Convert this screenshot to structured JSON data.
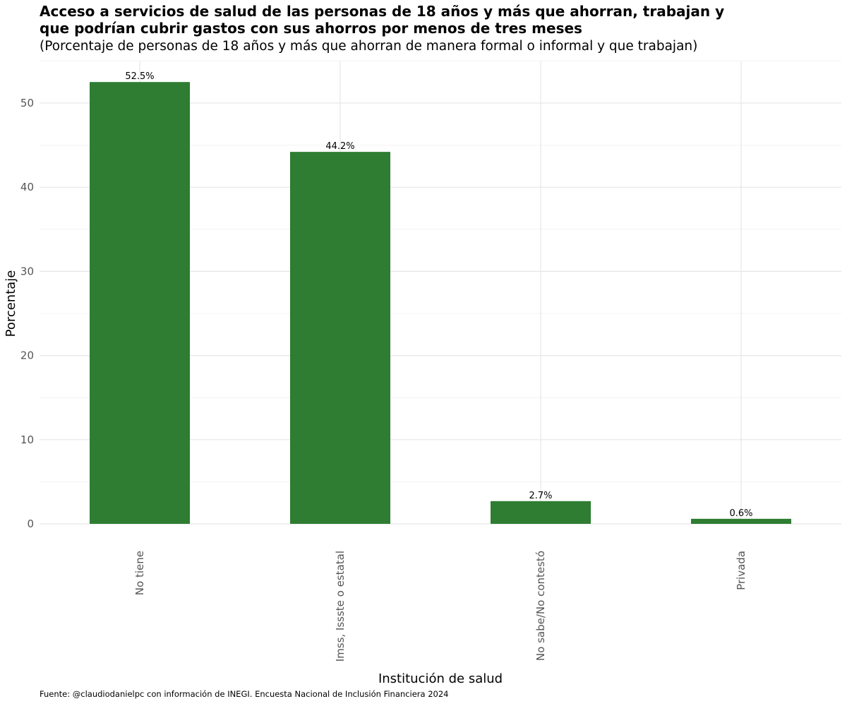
{
  "chart_data": {
    "type": "bar",
    "title_lines": [
      "Acceso a servicios de salud de las personas de 18 años y más que ahorran, trabajan y",
      "que podrían cubrir gastos con sus ahorros por menos de tres meses"
    ],
    "subtitle": "(Porcentaje de personas de 18 años y más que ahorran de manera formal o informal y que trabajan)",
    "xlabel": "Institución de salud",
    "ylabel": "Porcentaje",
    "categories": [
      "No tiene",
      "Imss, Issste o estatal",
      "No sabe/No contestó",
      "Privada"
    ],
    "values": [
      52.5,
      44.2,
      2.7,
      0.6
    ],
    "value_labels": [
      "52.5%",
      "44.2%",
      "2.7%",
      "0.6%"
    ],
    "yticks": [
      0,
      10,
      20,
      30,
      40,
      50
    ],
    "ylim": [
      0,
      55
    ],
    "grid": true,
    "bar_color": "#2e7d32",
    "caption": "Fuente: @claudiodanielpc con información de INEGI. Encuesta Nacional de Inclusión Financiera 2024"
  }
}
